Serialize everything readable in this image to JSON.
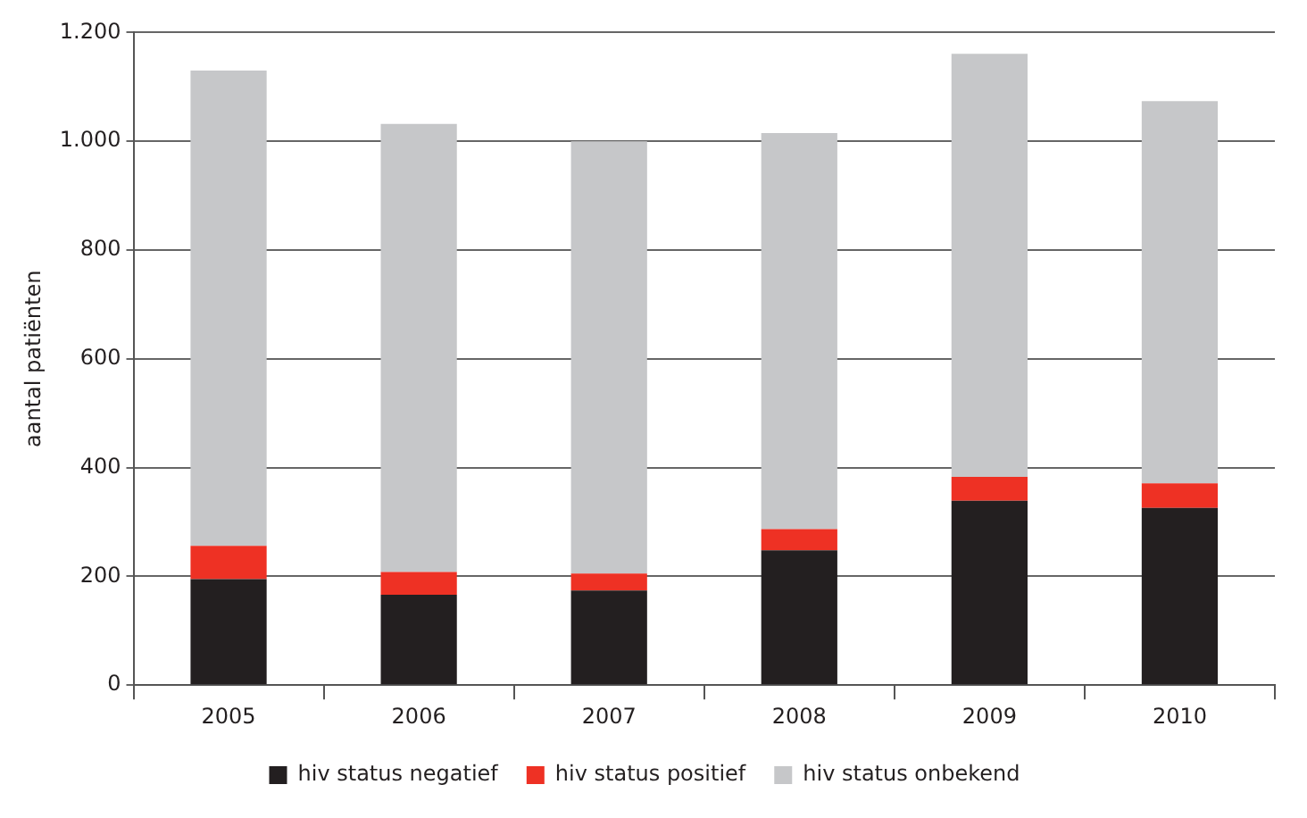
{
  "chart_data": {
    "type": "bar",
    "stacked": true,
    "ylabel": "aantal patiënten",
    "categories": [
      "2005",
      "2006",
      "2007",
      "2008",
      "2009",
      "2010"
    ],
    "series": [
      {
        "name": "hiv status negatief",
        "color": "#231f20",
        "values": [
          195,
          166,
          174,
          248,
          339,
          326
        ]
      },
      {
        "name": "hiv status positief",
        "color": "#ee3124",
        "values": [
          61,
          42,
          31,
          39,
          44,
          45
        ]
      },
      {
        "name": "hiv status onbekend",
        "color": "#c6c7c9",
        "values": [
          874,
          824,
          795,
          728,
          778,
          703
        ]
      }
    ],
    "ylim": [
      0,
      1200
    ],
    "yticks": [
      0,
      200,
      400,
      600,
      800,
      {
        "value": 1000,
        "label": "1.000"
      },
      {
        "value": 1200,
        "label": "1.200"
      }
    ],
    "grid": "y",
    "legend": "bottom"
  }
}
